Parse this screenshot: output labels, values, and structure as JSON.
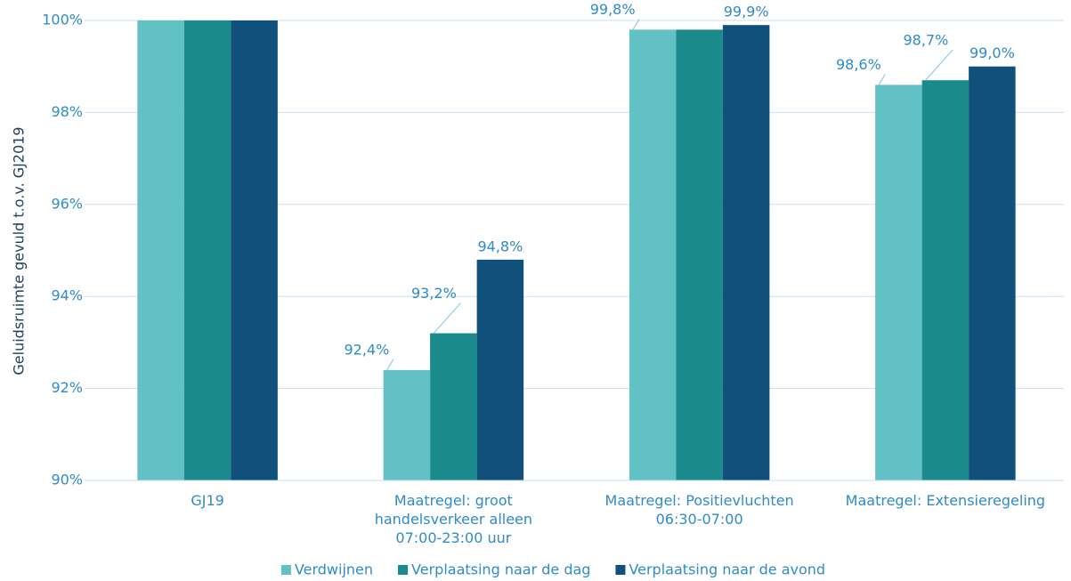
{
  "chart_data": {
    "type": "bar",
    "y_label": "Geluidsruimte gevuld t.o.v. GJ2019",
    "categories": [
      "GJ19",
      "Maatregel: groot handelsverkeer alleen 07:00-23:00 uur",
      "Maatregel: Positievluchten 06:30-07:00",
      "Maatregel: Extensieregeling"
    ],
    "series": [
      {
        "name": "Verdwijnen",
        "color": "#62c1c4",
        "values": [
          100,
          92.4,
          99.8,
          98.6
        ],
        "value_labels": [
          null,
          "92,4%",
          "99,8%",
          "98,6%"
        ]
      },
      {
        "name": "Verplaatsing naar de dag",
        "color": "#1a8a8c",
        "values": [
          100,
          93.2,
          99.8,
          98.7
        ],
        "value_labels": [
          null,
          "93,2%",
          null,
          "98,7%"
        ]
      },
      {
        "name": "Verplaatsing naar de avond",
        "color": "#10507b",
        "values": [
          100,
          94.8,
          99.9,
          99.0
        ],
        "value_labels": [
          null,
          "94,8%",
          "99,9%",
          "99,0%"
        ]
      }
    ],
    "ylim": [
      90,
      100
    ],
    "yticks": [
      {
        "value": 90,
        "label": "90%"
      },
      {
        "value": 92,
        "label": "92%"
      },
      {
        "value": 94,
        "label": "94%"
      },
      {
        "value": 96,
        "label": "96%"
      },
      {
        "value": 98,
        "label": "98%"
      },
      {
        "value": 100,
        "label": "100%"
      }
    ],
    "grid": true,
    "legend": "bottom"
  }
}
